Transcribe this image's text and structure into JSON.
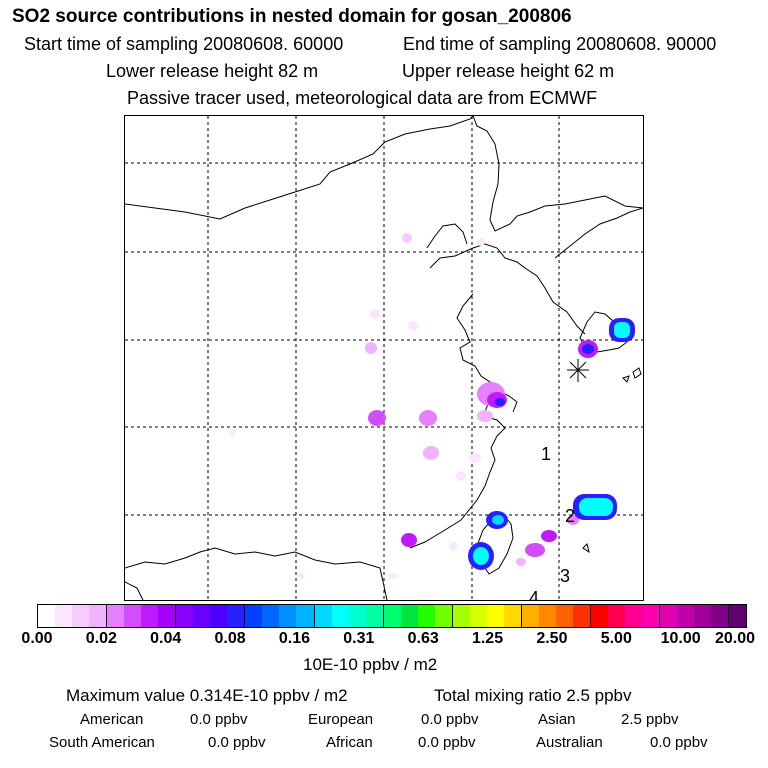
{
  "header": {
    "title": "SO2 source contributions in nested domain for gosan_200806",
    "start_time": "Start time of sampling 20080608. 60000",
    "end_time": "End time of sampling 20080608. 90000",
    "lower_height": "Lower release height   82 m",
    "upper_height": "Upper release height   62 m",
    "tracer_note": "Passive tracer used, meteorological data are from ECMWF"
  },
  "map": {
    "region_labels": [
      "1",
      "2",
      "3",
      "4"
    ],
    "receptor_marker": "gosan-receptor"
  },
  "legend": {
    "ticks": [
      "0.00",
      "0.02",
      "0.04",
      "0.08",
      "0.16",
      "0.31",
      "0.63",
      "1.25",
      "2.50",
      "5.00",
      "10.00",
      "20.00"
    ],
    "unit": "10E-10 ppbv / m2",
    "colors": [
      "#ffffff",
      "#fbe6ff",
      "#f6ccff",
      "#f0b3ff",
      "#e680ff",
      "#d24dff",
      "#bf1aff",
      "#a600ff",
      "#8a00ff",
      "#6a00ff",
      "#4d00ff",
      "#2a20ff",
      "#0040ff",
      "#0066ff",
      "#0090ff",
      "#00b3ff",
      "#00d8ff",
      "#00ffff",
      "#00ffd0",
      "#00ffa0",
      "#00ff70",
      "#00e640",
      "#20ff00",
      "#70ff00",
      "#a8ff00",
      "#d8ff00",
      "#ffff00",
      "#ffd800",
      "#ffb000",
      "#ff8800",
      "#ff6000",
      "#ff3000",
      "#ff0000",
      "#ff0050",
      "#ff0090",
      "#ff00b0",
      "#e000b0",
      "#c000a8",
      "#a0009a",
      "#80008a",
      "#600070"
    ]
  },
  "stats": {
    "maximum": "Maximum value  0.314E-10 ppbv / m2",
    "total": "Total mixing ratio        2.5 ppbv",
    "american": "American",
    "american_val": "0.0 ppbv",
    "european": "European",
    "european_val": "0.0 ppbv",
    "asian": "Asian",
    "asian_val": "2.5 ppbv",
    "south_american": "South American",
    "south_american_val": "0.0 ppbv",
    "african": "African",
    "african_val": "0.0 ppbv",
    "australian": "Australian",
    "australian_val": "0.0 ppbv"
  }
}
